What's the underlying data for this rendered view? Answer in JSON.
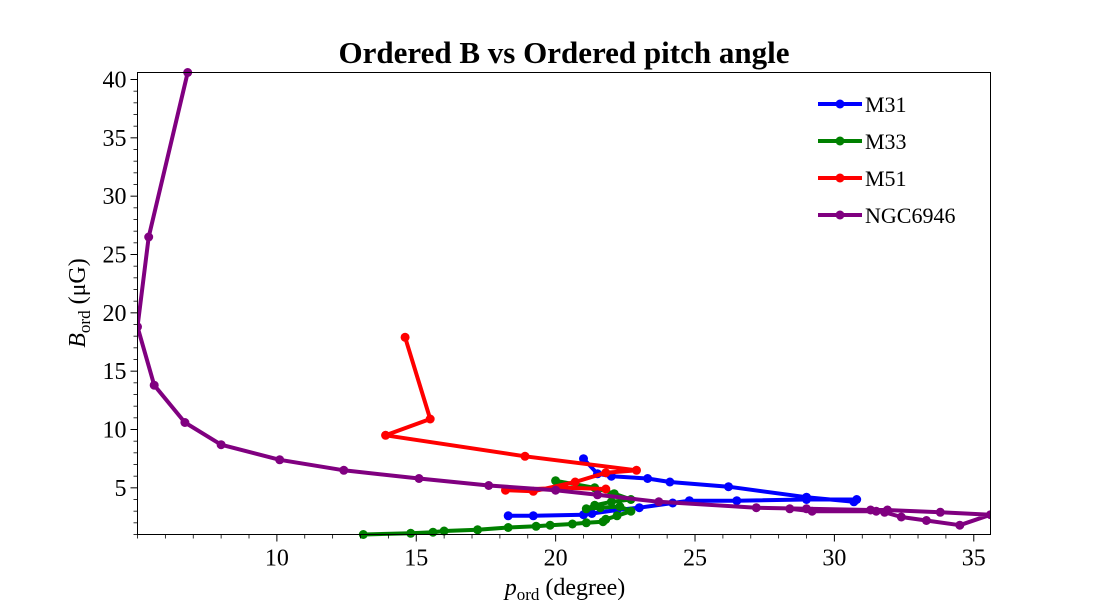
{
  "chart_data": {
    "type": "line",
    "title": "Ordered B vs Ordered pitch angle",
    "xlabel_main": "p",
    "xlabel_sub": "ord",
    "xlabel_rest": " (degree)",
    "ylabel_main": "B",
    "ylabel_sub": "ord",
    "ylabel_rest": " (μG)",
    "xlim": [
      5.0,
      35.6
    ],
    "ylim": [
      1.0,
      40.6
    ],
    "xticks": [
      10,
      15,
      20,
      25,
      30,
      35
    ],
    "yticks": [
      5,
      10,
      15,
      20,
      25,
      30,
      35,
      40
    ],
    "legend_position": "top-right",
    "series": [
      {
        "name": "M31",
        "color": "#0000ff",
        "x": [
          21.0,
          21.5,
          22.0,
          23.3,
          24.1,
          26.2,
          29.0,
          30.7,
          30.8,
          29.0,
          26.5,
          24.8,
          24.2,
          23.0,
          22.2,
          21.3,
          21.0,
          19.2,
          18.3
        ],
        "y": [
          7.5,
          6.2,
          6.0,
          5.8,
          5.5,
          5.1,
          4.2,
          3.8,
          4.0,
          4.0,
          3.9,
          3.9,
          3.7,
          3.3,
          3.1,
          2.8,
          2.7,
          2.6,
          2.6
        ]
      },
      {
        "name": "M33",
        "color": "#008000",
        "x": [
          13.1,
          14.8,
          15.6,
          16.0,
          17.2,
          18.3,
          19.3,
          19.8,
          20.6,
          21.1,
          21.7,
          21.8,
          22.2,
          22.7,
          22.3,
          21.6,
          21.1,
          21.4,
          22.0,
          22.7,
          22.1,
          21.4,
          20.0
        ],
        "y": [
          1.0,
          1.1,
          1.2,
          1.3,
          1.4,
          1.6,
          1.7,
          1.8,
          1.9,
          2.0,
          2.1,
          2.3,
          2.6,
          3.0,
          3.4,
          3.3,
          3.2,
          3.5,
          3.8,
          4.0,
          4.5,
          5.0,
          5.6
        ]
      },
      {
        "name": "M51",
        "color": "#ff0000",
        "x": [
          14.6,
          15.5,
          13.9,
          18.9,
          22.9,
          21.8,
          20.7,
          19.2,
          18.2,
          20.3,
          21.8
        ],
        "y": [
          17.9,
          10.9,
          9.5,
          7.7,
          6.5,
          6.3,
          5.5,
          4.7,
          4.8,
          5.0,
          4.9
        ]
      },
      {
        "name": "NGC6946",
        "color": "#800080",
        "x": [
          6.8,
          5.4,
          5.0,
          5.6,
          6.7,
          8.0,
          10.1,
          12.4,
          15.1,
          17.6,
          20.0,
          21.5,
          23.7,
          27.2,
          29.0,
          31.3,
          31.9,
          33.8,
          35.6,
          34.5,
          33.3,
          32.4,
          31.8,
          31.5,
          29.2,
          28.4
        ],
        "y": [
          40.6,
          26.5,
          18.8,
          13.8,
          10.6,
          8.7,
          7.4,
          6.5,
          5.8,
          5.2,
          4.8,
          4.4,
          3.8,
          3.3,
          3.2,
          3.1,
          3.1,
          2.9,
          2.7,
          1.8,
          2.2,
          2.5,
          2.9,
          3.0,
          3.0,
          3.2
        ]
      }
    ]
  }
}
